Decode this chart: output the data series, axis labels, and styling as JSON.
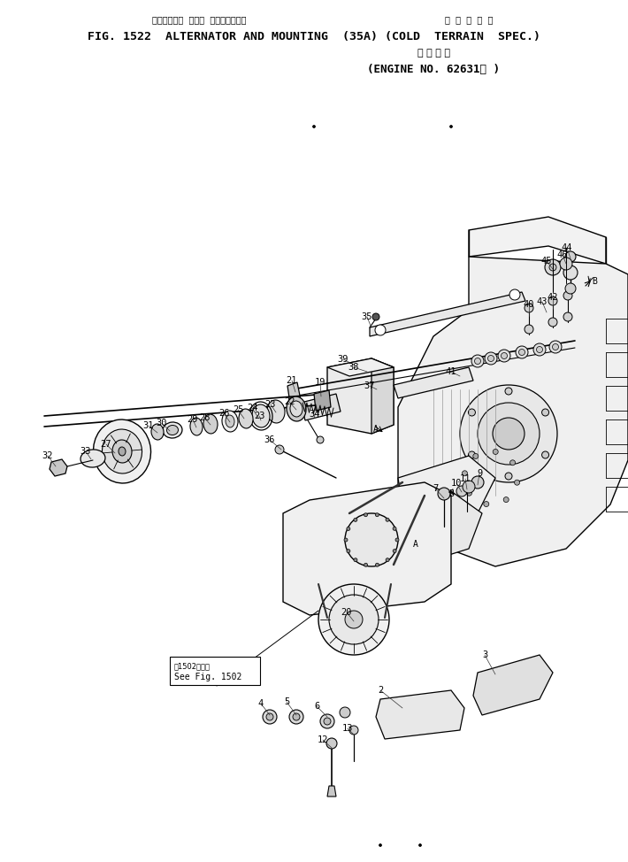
{
  "bg": "#ffffff",
  "lc": "#000000",
  "fig_width": 7.1,
  "fig_height": 9.74,
  "dpi": 100,
  "title_jp_left": "オルタネータ  および  マウンティング",
  "title_jp_right": "寒  冷  地  仕  機",
  "title_main": "FIG. 1522  ALTERNATOR AND MOUNTING  (35A) (COLD  TERRAIN  SPEC.)",
  "title_sub_jp": "適 用 号 機",
  "title_sub": "(ENGINE NO. 62631－ )",
  "see_jp": "㄄1502図参照",
  "see_en": "See Fig. 1502"
}
